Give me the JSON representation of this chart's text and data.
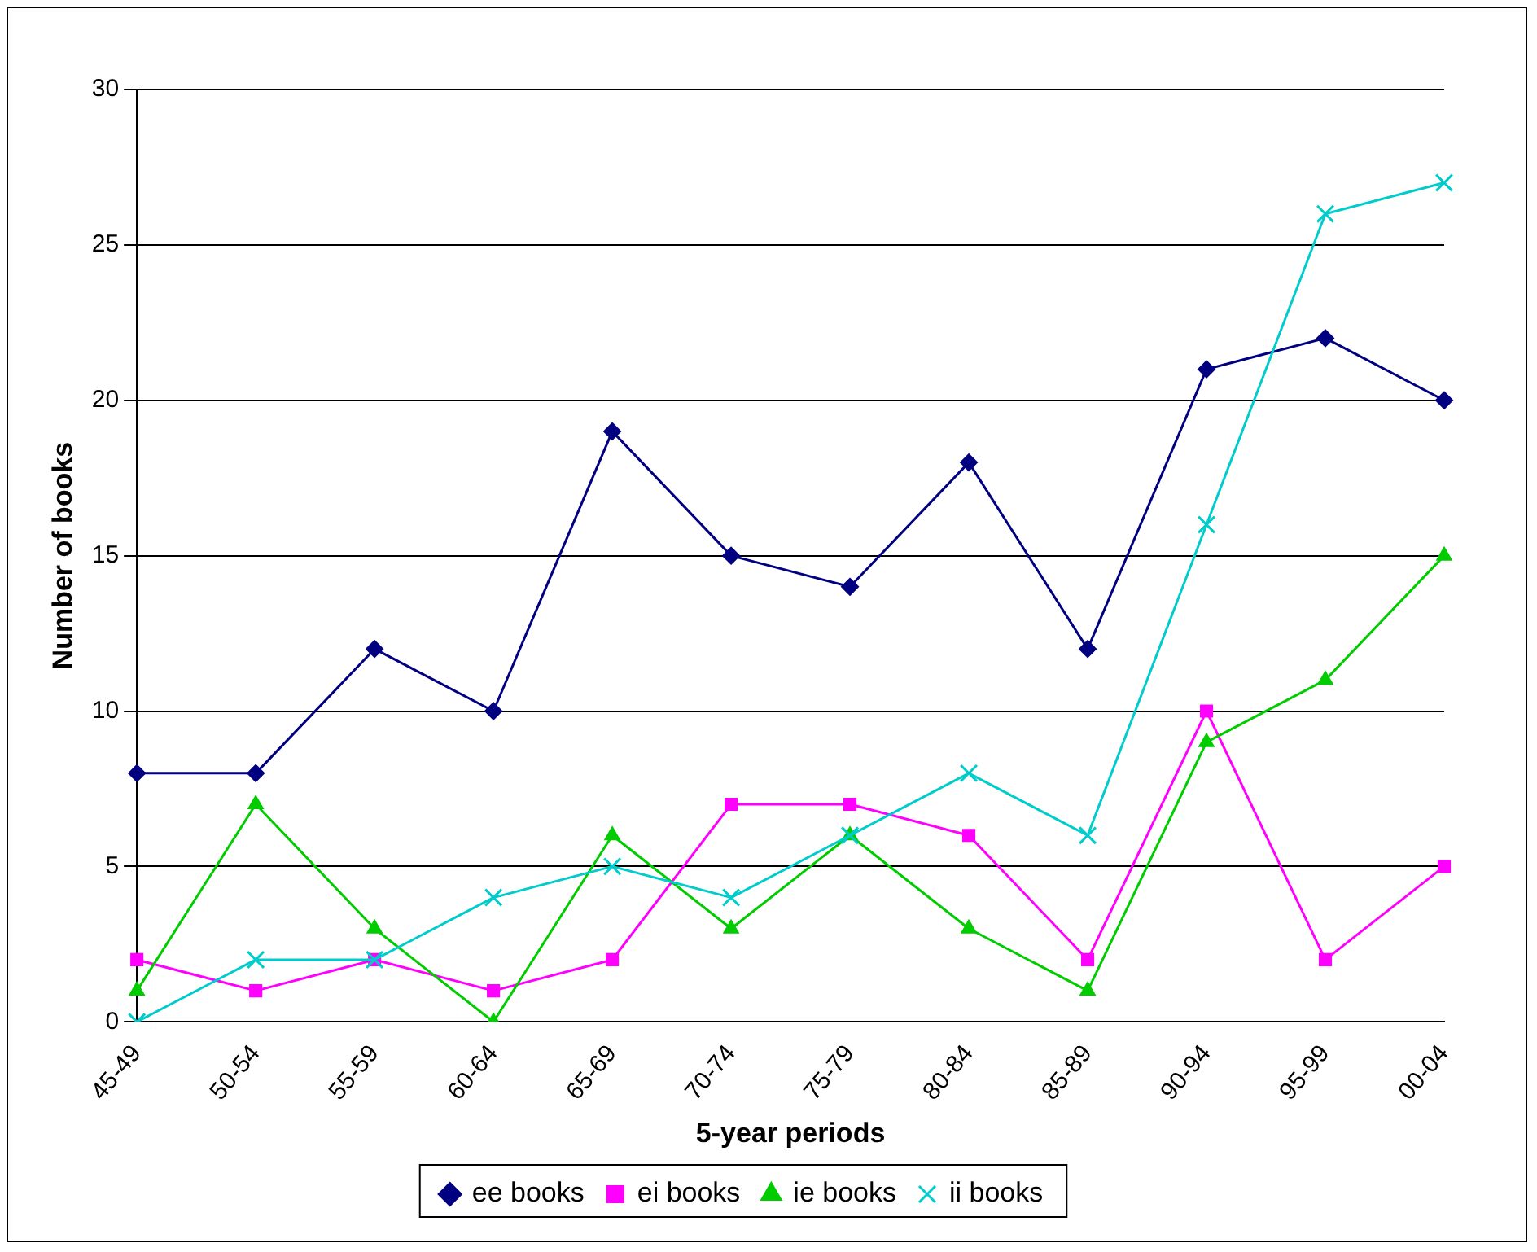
{
  "chart_data": {
    "type": "line",
    "xlabel": "5-year periods",
    "ylabel": "Number of books",
    "categories": [
      "45-49",
      "50-54",
      "55-59",
      "60-64",
      "65-69",
      "70-74",
      "75-79",
      "80-84",
      "85-89",
      "90-94",
      "95-99",
      "00-04"
    ],
    "ylim": [
      0,
      30
    ],
    "yticks": [
      0,
      5,
      10,
      15,
      20,
      25,
      30
    ],
    "grid": "y",
    "legend": "bottom",
    "series": [
      {
        "name": "ee books",
        "color": "#000080",
        "marker": "diamond",
        "values": [
          8,
          8,
          12,
          10,
          19,
          15,
          14,
          18,
          12,
          21,
          22,
          20
        ]
      },
      {
        "name": "ei books",
        "color": "#ff00ff",
        "marker": "square",
        "values": [
          2,
          1,
          2,
          1,
          2,
          7,
          7,
          6,
          2,
          10,
          2,
          5
        ]
      },
      {
        "name": "ie books",
        "color": "#00cc00",
        "marker": "triangle",
        "values": [
          1,
          7,
          3,
          0,
          6,
          3,
          6,
          3,
          1,
          9,
          11,
          15
        ]
      },
      {
        "name": "ii books",
        "color": "#00cccc",
        "marker": "cross",
        "values": [
          0,
          2,
          2,
          4,
          5,
          4,
          6,
          8,
          6,
          16,
          26,
          27
        ]
      }
    ]
  }
}
